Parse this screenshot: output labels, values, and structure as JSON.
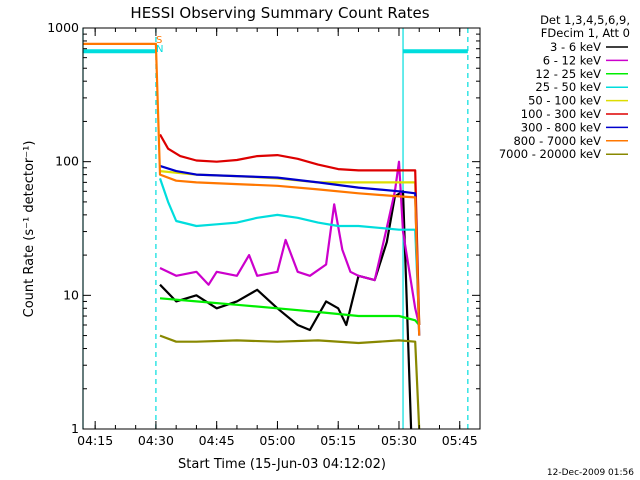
{
  "chart_data": {
    "type": "line",
    "title": "HESSI Observing Summary Count Rates",
    "xlabel": "Start Time (15-Jun-03 04:12:02)",
    "ylabel": "Count Rate (s⁻¹ detector⁻¹)",
    "xlim": [
      "04:12",
      "05:50"
    ],
    "ylim": [
      1,
      1000
    ],
    "yscale": "log",
    "x_ticks": [
      "04:15",
      "04:30",
      "04:45",
      "05:00",
      "05:15",
      "05:30",
      "05:45"
    ],
    "y_ticks": [
      "1",
      "10",
      "100",
      "1000"
    ],
    "grid": false,
    "legend_position": "right",
    "legend_header": [
      "Det 1,3,4,5,6,9,",
      "FDecim 1, Att 0"
    ],
    "timestamp": "12-Dec-2009 01:56",
    "markers": {
      "S": "S",
      "N": "N"
    },
    "series": [
      {
        "name": "3 - 6 keV",
        "color": "#000000",
        "x": [
          "04:31",
          "04:35",
          "04:40",
          "04:45",
          "04:50",
          "04:55",
          "05:00",
          "05:05",
          "05:08",
          "05:12",
          "05:15",
          "05:17",
          "05:20",
          "05:24",
          "05:27",
          "05:29",
          "05:31",
          "05:33"
        ],
        "y": [
          12,
          9,
          10,
          8,
          9,
          11,
          8,
          6,
          5.5,
          9,
          8,
          6,
          14,
          13,
          25,
          55,
          60,
          1
        ]
      },
      {
        "name": "6 - 12 keV",
        "color": "#cc00cc",
        "x": [
          "04:31",
          "04:35",
          "04:40",
          "04:43",
          "04:45",
          "04:50",
          "04:53",
          "04:55",
          "05:00",
          "05:02",
          "05:05",
          "05:08",
          "05:12",
          "05:14",
          "05:16",
          "05:18",
          "05:20",
          "05:24",
          "05:27",
          "05:29",
          "05:30",
          "05:31",
          "05:34",
          "05:35"
        ],
        "y": [
          16,
          14,
          15,
          12,
          15,
          14,
          20,
          14,
          15,
          26,
          15,
          14,
          17,
          48,
          22,
          15,
          14,
          13,
          32,
          60,
          100,
          30,
          8,
          6
        ]
      },
      {
        "name": "12 - 25 keV",
        "color": "#00ee00",
        "x": [
          "04:31",
          "04:40",
          "04:50",
          "05:00",
          "05:10",
          "05:20",
          "05:30",
          "05:34",
          "05:35"
        ],
        "y": [
          9.5,
          9,
          8.5,
          8,
          7.5,
          7,
          7,
          6.5,
          6
        ]
      },
      {
        "name": "25 - 50 keV",
        "color": "#00dddd",
        "x": [
          "04:31",
          "04:33",
          "04:35",
          "04:40",
          "04:45",
          "04:50",
          "04:55",
          "05:00",
          "05:05",
          "05:10",
          "05:15",
          "05:20",
          "05:25",
          "05:30",
          "05:34",
          "05:35"
        ],
        "y": [
          75,
          50,
          36,
          33,
          34,
          35,
          38,
          40,
          38,
          35,
          33,
          33,
          32,
          31,
          31,
          6
        ]
      },
      {
        "name": "50 - 100 keV",
        "color": "#dddd00",
        "x": [
          "04:31",
          "04:40",
          "04:50",
          "05:00",
          "05:10",
          "05:20",
          "05:30",
          "05:34",
          "05:35"
        ],
        "y": [
          85,
          80,
          78,
          75,
          70,
          70,
          70,
          70,
          6
        ]
      },
      {
        "name": "100 - 300 keV",
        "color": "#dd0000",
        "x": [
          "04:31",
          "04:33",
          "04:36",
          "04:40",
          "04:45",
          "04:50",
          "04:55",
          "05:00",
          "05:05",
          "05:10",
          "05:15",
          "05:20",
          "05:30",
          "05:34",
          "05:35"
        ],
        "y": [
          160,
          125,
          110,
          102,
          100,
          103,
          110,
          112,
          105,
          95,
          88,
          86,
          86,
          86,
          6
        ]
      },
      {
        "name": "300 - 800 keV",
        "color": "#0000cc",
        "x": [
          "04:31",
          "04:35",
          "04:40",
          "04:50",
          "05:00",
          "05:10",
          "05:20",
          "05:30",
          "05:34",
          "05:35"
        ],
        "y": [
          93,
          85,
          80,
          78,
          76,
          70,
          64,
          60,
          58,
          5
        ]
      },
      {
        "name": "800 - 7000 keV",
        "color": "#ff7700",
        "x": [
          "04:12",
          "04:30",
          "04:31",
          "04:35",
          "04:40",
          "04:50",
          "05:00",
          "05:10",
          "05:20",
          "05:30",
          "05:34",
          "05:35"
        ],
        "y": [
          760,
          760,
          80,
          72,
          70,
          68,
          66,
          62,
          58,
          55,
          54,
          5
        ]
      },
      {
        "name": "7000 - 20000 keV",
        "color": "#888800",
        "x": [
          "04:31",
          "04:35",
          "04:40",
          "04:50",
          "05:00",
          "05:10",
          "05:20",
          "05:30",
          "05:34",
          "05:35"
        ],
        "y": [
          5,
          4.5,
          4.5,
          4.6,
          4.5,
          4.6,
          4.4,
          4.6,
          4.5,
          1
        ]
      }
    ],
    "annotations": [
      {
        "type": "vline",
        "x": "04:12",
        "color": "#00dddd",
        "style": "solid"
      },
      {
        "type": "vline",
        "x": "04:30",
        "color": "#00dddd",
        "style": "dashed"
      },
      {
        "type": "vline",
        "x": "05:31",
        "color": "#00dddd",
        "style": "solid"
      },
      {
        "type": "vline",
        "x": "05:47",
        "color": "#00dddd",
        "style": "dashed"
      },
      {
        "type": "segment",
        "x": [
          "04:12",
          "04:30"
        ],
        "y": 670,
        "color": "#00dddd"
      },
      {
        "type": "segment",
        "x": [
          "05:31",
          "05:47"
        ],
        "y": 670,
        "color": "#00dddd"
      }
    ]
  }
}
